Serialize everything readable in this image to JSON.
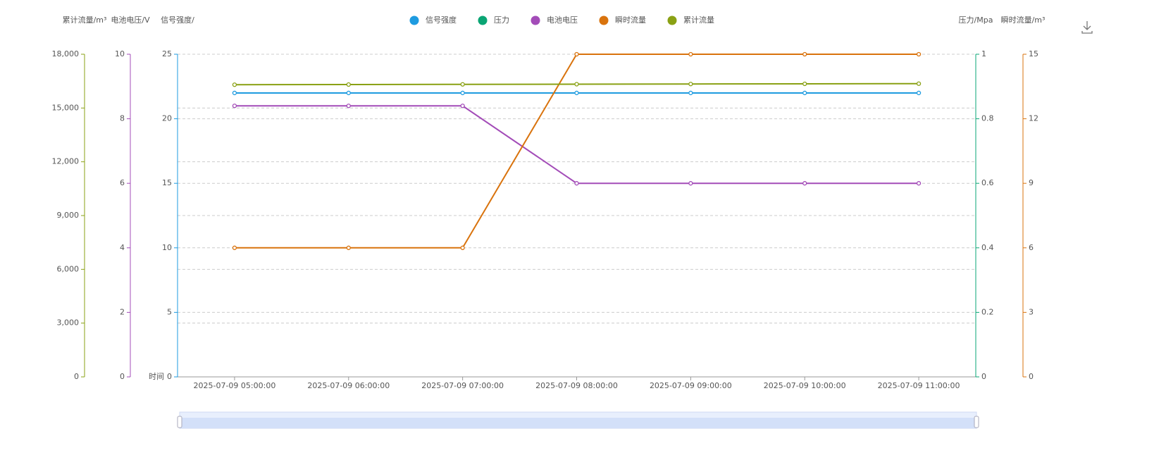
{
  "chart_data": {
    "type": "line",
    "x_label": "时间",
    "categories": [
      "2025-07-09 05:00:00",
      "2025-07-09 06:00:00",
      "2025-07-09 07:00:00",
      "2025-07-09 08:00:00",
      "2025-07-09 09:00:00",
      "2025-07-09 10:00:00",
      "2025-07-09 11:00:00"
    ],
    "y_axes": [
      {
        "name": "累计流量/m³",
        "color": "#8aa114",
        "ylim": [
          0,
          18000
        ],
        "grid": true,
        "yticks": [
          0,
          {
            "value": 3000,
            "label": "3,000"
          },
          {
            "value": 6000,
            "label": "6,000"
          },
          {
            "value": 9000,
            "label": "9,000"
          },
          {
            "value": 12000,
            "label": "12,000"
          },
          {
            "value": 15000,
            "label": "15,000"
          },
          {
            "value": 18000,
            "label": "18,000"
          }
        ]
      },
      {
        "name": "电池电压/V",
        "color": "#a34cb8",
        "ylim": [
          0,
          10
        ],
        "grid": false,
        "yticks": [
          0,
          2,
          4,
          6,
          8,
          10
        ]
      },
      {
        "name": "信号强度/",
        "color": "#1e9be0",
        "ylim": [
          0,
          25
        ],
        "grid": true,
        "yticks": [
          0,
          5,
          10,
          15,
          20,
          25
        ]
      },
      {
        "name": "压力/Mpa",
        "color": "#0aa574",
        "ylim": [
          0,
          1
        ],
        "grid": false,
        "yticks": [
          0,
          0.2,
          0.4,
          0.6,
          0.8,
          1
        ]
      },
      {
        "name": "瞬时流量/m³",
        "color": "#d9730d",
        "ylim": [
          0,
          15
        ],
        "grid": false,
        "yticks": [
          0,
          3,
          6,
          9,
          12,
          15
        ]
      }
    ],
    "series": [
      {
        "name": "信号强度",
        "color": "#1e9be0",
        "axis": 2,
        "values": [
          22,
          22,
          22,
          22,
          22,
          22,
          22
        ]
      },
      {
        "name": "压力",
        "color": "#0aa574",
        "axis": 3,
        "values": [
          null,
          null,
          null,
          null,
          null,
          null,
          null
        ]
      },
      {
        "name": "电池电压",
        "color": "#a34cb8",
        "axis": 1,
        "values": [
          8.4,
          8.4,
          8.4,
          6,
          6,
          6,
          6
        ]
      },
      {
        "name": "瞬时流量",
        "color": "#d9730d",
        "axis": 4,
        "values": [
          6,
          6,
          6,
          15,
          15,
          15,
          15
        ]
      },
      {
        "name": "累计流量",
        "color": "#8aa114",
        "axis": 0,
        "values": [
          16300,
          16310,
          16320,
          16330,
          16340,
          16350,
          16360
        ]
      }
    ]
  }
}
